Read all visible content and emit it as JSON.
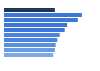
{
  "chart_data": {
    "type": "bar",
    "orientation": "horizontal",
    "categories": [
      null,
      null,
      null,
      null,
      null,
      null,
      null,
      null,
      null,
      null
    ],
    "values": [
      62,
      95,
      90,
      77,
      74,
      68,
      65,
      63,
      62,
      60
    ],
    "colors": [
      "#1d3557",
      "#3b78d8",
      "#3b78d8",
      "#3b78d8",
      "#3b78d8",
      "#4a84dc",
      "#4a84dc",
      "#5a90e0",
      "#6a9ce4",
      "#7aa8e8"
    ],
    "xlim": [
      0,
      100
    ],
    "tick_labels": false,
    "grid": false
  }
}
